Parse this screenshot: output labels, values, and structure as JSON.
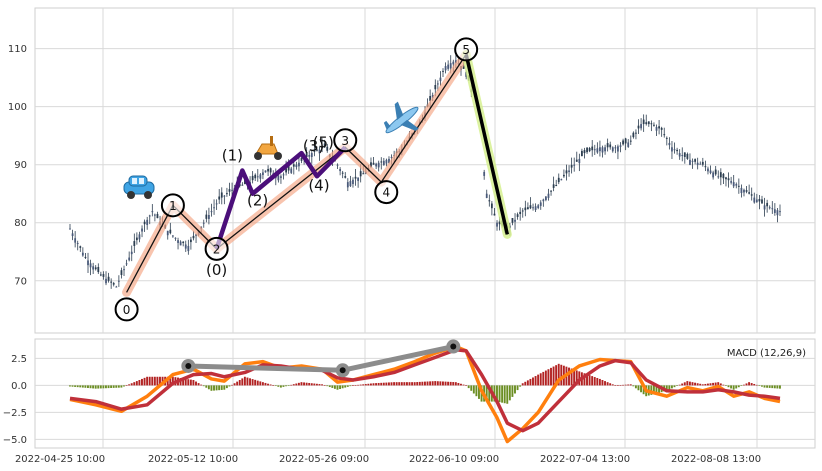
{
  "chart_data": [
    {
      "type": "candlestick",
      "title": "",
      "ylim": [
        61,
        117
      ],
      "yticks": [
        70,
        80,
        90,
        100,
        110
      ],
      "grid": true,
      "x_tick_labels": [
        "2022-04-25 10:00",
        "2022-05-12 10:00",
        "2022-05-26 09:00",
        "2022-06-10 09:00",
        "2022-07-04 13:00",
        "2022-08-08 13:00"
      ],
      "price_path": [
        [
          0,
          79
        ],
        [
          6,
          74
        ],
        [
          12,
          71
        ],
        [
          18,
          69
        ],
        [
          22,
          73
        ],
        [
          28,
          79
        ],
        [
          32,
          82
        ],
        [
          37,
          79
        ],
        [
          42,
          77
        ],
        [
          46,
          76
        ],
        [
          52,
          80
        ],
        [
          58,
          84
        ],
        [
          64,
          86
        ],
        [
          70,
          87
        ],
        [
          76,
          89
        ],
        [
          82,
          88
        ],
        [
          88,
          90
        ],
        [
          94,
          92
        ],
        [
          99,
          93
        ],
        [
          104,
          90
        ],
        [
          108,
          87
        ],
        [
          113,
          88
        ],
        [
          118,
          90
        ],
        [
          124,
          91
        ],
        [
          130,
          93
        ],
        [
          136,
          97
        ],
        [
          142,
          103
        ],
        [
          146,
          107
        ],
        [
          150,
          108
        ],
        [
          154,
          106
        ],
        [
          158,
          100
        ],
        [
          162,
          85
        ],
        [
          166,
          80
        ],
        [
          170,
          79
        ],
        [
          176,
          82
        ],
        [
          182,
          83
        ],
        [
          188,
          86
        ],
        [
          194,
          89
        ],
        [
          200,
          92
        ],
        [
          206,
          93
        ],
        [
          212,
          93
        ],
        [
          218,
          94
        ],
        [
          222,
          97
        ],
        [
          226,
          97
        ],
        [
          230,
          96
        ],
        [
          234,
          93
        ],
        [
          240,
          91
        ],
        [
          246,
          90
        ],
        [
          252,
          88
        ],
        [
          258,
          87
        ],
        [
          264,
          85
        ],
        [
          270,
          83
        ],
        [
          276,
          82
        ]
      ],
      "elliott_waves": {
        "main_line_points": [
          {
            "label": "0",
            "x": 22,
            "y": 68
          },
          {
            "label": "1",
            "x": 40,
            "y": 83
          },
          {
            "label": "2",
            "x": 57,
            "y": 75.5
          },
          {
            "label": "3",
            "x": 107,
            "y": 93
          },
          {
            "label": "4",
            "x": 121,
            "y": 87
          },
          {
            "label": "5",
            "x": 154,
            "y": 109
          },
          {
            "label": "",
            "x": 170,
            "y": 78
          }
        ],
        "sub_wave_points": [
          {
            "label": "(0)",
            "x": 57,
            "y": 75.5
          },
          {
            "label": "(1)",
            "x": 67,
            "y": 89
          },
          {
            "label": "(2)",
            "x": 71,
            "y": 85
          },
          {
            "label": "(3)",
            "x": 90,
            "y": 92
          },
          {
            "label": "(4)",
            "x": 96,
            "y": 88
          },
          {
            "label": "(5)",
            "x": 107,
            "y": 93
          }
        ],
        "sub_wave_labels": [
          "(0)",
          "(1)",
          "(2)",
          "(3)",
          "(4)",
          "(5)"
        ],
        "wave_labels": [
          "0",
          "1",
          "2",
          "3",
          "4",
          "5"
        ]
      }
    },
    {
      "type": "line",
      "legend": "MACD (12,26,9)",
      "legend_position": "top-right",
      "ylim": [
        -5.8,
        4.3
      ],
      "yticks": [
        -5.0,
        -2.5,
        0.0,
        2.5
      ],
      "ytick_labels": [
        "−5.0",
        "−2.5",
        "0.0",
        "2.5"
      ],
      "macd_line": [
        [
          0,
          -1.3
        ],
        [
          10,
          -1.8
        ],
        [
          20,
          -2.4
        ],
        [
          30,
          -1.0
        ],
        [
          40,
          1.0
        ],
        [
          48,
          1.5
        ],
        [
          55,
          0.6
        ],
        [
          60,
          0.4
        ],
        [
          68,
          2.0
        ],
        [
          75,
          2.2
        ],
        [
          82,
          1.6
        ],
        [
          90,
          1.8
        ],
        [
          98,
          1.5
        ],
        [
          104,
          0.3
        ],
        [
          110,
          0.5
        ],
        [
          118,
          1.0
        ],
        [
          126,
          1.5
        ],
        [
          134,
          2.2
        ],
        [
          142,
          3.0
        ],
        [
          150,
          3.6
        ],
        [
          154,
          3.2
        ],
        [
          160,
          -0.5
        ],
        [
          166,
          -3.0
        ],
        [
          170,
          -5.2
        ],
        [
          176,
          -4.0
        ],
        [
          182,
          -2.5
        ],
        [
          190,
          0.5
        ],
        [
          198,
          1.8
        ],
        [
          206,
          2.4
        ],
        [
          212,
          2.3
        ],
        [
          218,
          2.2
        ],
        [
          224,
          -0.5
        ],
        [
          232,
          -1.0
        ],
        [
          240,
          -0.2
        ],
        [
          246,
          -0.5
        ],
        [
          252,
          -0.1
        ],
        [
          258,
          -1.0
        ],
        [
          264,
          -0.6
        ],
        [
          270,
          -1.2
        ],
        [
          276,
          -1.5
        ]
      ],
      "signal_line": [
        [
          0,
          -1.2
        ],
        [
          10,
          -1.5
        ],
        [
          20,
          -2.2
        ],
        [
          30,
          -1.8
        ],
        [
          40,
          0.2
        ],
        [
          48,
          1.0
        ],
        [
          55,
          1.1
        ],
        [
          60,
          0.8
        ],
        [
          68,
          1.2
        ],
        [
          75,
          1.9
        ],
        [
          82,
          1.8
        ],
        [
          90,
          1.5
        ],
        [
          98,
          1.4
        ],
        [
          104,
          0.7
        ],
        [
          110,
          0.5
        ],
        [
          118,
          0.8
        ],
        [
          126,
          1.2
        ],
        [
          134,
          1.9
        ],
        [
          142,
          2.6
        ],
        [
          150,
          3.3
        ],
        [
          154,
          3.2
        ],
        [
          160,
          1.0
        ],
        [
          166,
          -1.5
        ],
        [
          170,
          -3.5
        ],
        [
          176,
          -4.2
        ],
        [
          182,
          -3.5
        ],
        [
          190,
          -1.5
        ],
        [
          198,
          0.5
        ],
        [
          206,
          1.8
        ],
        [
          212,
          2.3
        ],
        [
          218,
          2.1
        ],
        [
          224,
          0.5
        ],
        [
          232,
          -0.5
        ],
        [
          240,
          -0.6
        ],
        [
          246,
          -0.6
        ],
        [
          252,
          -0.4
        ],
        [
          258,
          -0.6
        ],
        [
          264,
          -0.9
        ],
        [
          270,
          -1.0
        ],
        [
          276,
          -1.2
        ]
      ],
      "divergence_markers": [
        [
          46,
          1.8
        ],
        [
          106,
          1.4
        ],
        [
          149,
          3.6
        ]
      ]
    }
  ]
}
